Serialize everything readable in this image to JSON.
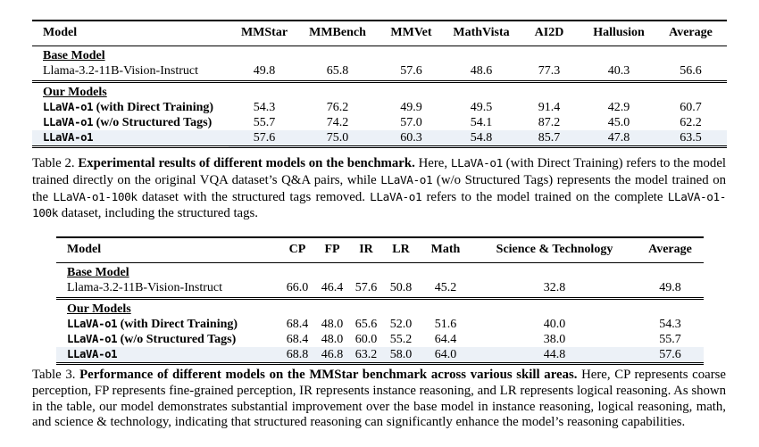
{
  "page": {
    "background_color": "#ffffff",
    "text_color": "#000000",
    "highlight_row_color": "#ecf1f7"
  },
  "chart_data": [
    {
      "type": "table",
      "title": "Experimental results of different models on the benchmark",
      "columns": [
        "Model",
        "MMStar",
        "MMBench",
        "MMVet",
        "MathVista",
        "AI2D",
        "Hallusion",
        "Average"
      ],
      "sections": [
        {
          "heading": "Base Model",
          "rows": [
            {
              "model": [
                {
                  "t": "Llama-3.2-11B-Vision-Instruct",
                  "s": "r"
                }
              ],
              "values": [
                "49.8",
                "65.8",
                "57.6",
                "48.6",
                "77.3",
                "40.3",
                "56.6"
              ],
              "highlight": false
            }
          ]
        },
        {
          "heading": "Our Models",
          "rows": [
            {
              "model": [
                {
                  "t": "LLaVA-o1",
                  "s": "mb"
                },
                {
                  "t": " (with Direct Training)",
                  "s": "b"
                }
              ],
              "values": [
                "54.3",
                "76.2",
                "49.9",
                "49.5",
                "91.4",
                "42.9",
                "60.7"
              ],
              "highlight": false
            },
            {
              "model": [
                {
                  "t": "LLaVA-o1",
                  "s": "mb"
                },
                {
                  "t": " (w/o Structured Tags)",
                  "s": "b"
                }
              ],
              "values": [
                "55.7",
                "74.2",
                "57.0",
                "54.1",
                "87.2",
                "45.0",
                "62.2"
              ],
              "highlight": false
            },
            {
              "model": [
                {
                  "t": "LLaVA-o1",
                  "s": "mb"
                }
              ],
              "values": [
                "57.6",
                "75.0",
                "60.3",
                "54.8",
                "85.7",
                "47.8",
                "63.5"
              ],
              "highlight": true
            }
          ]
        }
      ]
    },
    {
      "type": "table",
      "title": "Performance of different models on the MMStar benchmark across various skill areas",
      "columns": [
        "Model",
        "CP",
        "FP",
        "IR",
        "LR",
        "Math",
        "Science & Technology",
        "Average"
      ],
      "sections": [
        {
          "heading": "Base Model",
          "rows": [
            {
              "model": [
                {
                  "t": "Llama-3.2-11B-Vision-Instruct",
                  "s": "r"
                }
              ],
              "values": [
                "66.0",
                "46.4",
                "57.6",
                "50.8",
                "45.2",
                "32.8",
                "49.8"
              ],
              "highlight": false
            }
          ]
        },
        {
          "heading": "Our Models",
          "rows": [
            {
              "model": [
                {
                  "t": "LLaVA-o1",
                  "s": "mb"
                },
                {
                  "t": " (with Direct Training)",
                  "s": "b"
                }
              ],
              "values": [
                "68.4",
                "48.0",
                "65.6",
                "52.0",
                "51.6",
                "40.0",
                "54.3"
              ],
              "highlight": false
            },
            {
              "model": [
                {
                  "t": "LLaVA-o1",
                  "s": "mb"
                },
                {
                  "t": " (w/o Structured Tags)",
                  "s": "b"
                }
              ],
              "values": [
                "68.4",
                "48.0",
                "60.0",
                "55.2",
                "64.4",
                "38.0",
                "55.7"
              ],
              "highlight": false
            },
            {
              "model": [
                {
                  "t": "LLaVA-o1",
                  "s": "mb"
                }
              ],
              "values": [
                "68.8",
                "46.8",
                "63.2",
                "58.0",
                "64.0",
                "44.8",
                "57.6"
              ],
              "highlight": true
            }
          ]
        }
      ]
    }
  ],
  "caption2": {
    "segments": [
      {
        "t": "Table 2.  ",
        "s": "r"
      },
      {
        "t": "Experimental results of different models on the benchmark.",
        "s": "b"
      },
      {
        "t": "  Here, ",
        "s": "r"
      },
      {
        "t": "LLaVA-o1",
        "s": "m"
      },
      {
        "t": " (with Direct Training) refers to the model trained directly on the original VQA dataset’s Q&A pairs, while ",
        "s": "r"
      },
      {
        "t": "LLaVA-o1",
        "s": "m"
      },
      {
        "t": " (w/o Structured Tags) represents the model trained on the ",
        "s": "r"
      },
      {
        "t": "LLaVA-o1-100k",
        "s": "m"
      },
      {
        "t": " dataset with the structured tags removed. ",
        "s": "r"
      },
      {
        "t": "LLaVA-o1",
        "s": "m"
      },
      {
        "t": " refers to the model trained on the complete ",
        "s": "r"
      },
      {
        "t": "LLaVA-o1-100k",
        "s": "m"
      },
      {
        "t": " dataset, including the structured tags.",
        "s": "r"
      }
    ]
  },
  "caption3": {
    "segments": [
      {
        "t": "Table 3.  ",
        "s": "r"
      },
      {
        "t": "Performance of different models on the MMStar benchmark across various skill areas.",
        "s": "b"
      },
      {
        "t": "  Here, CP represents coarse perception, FP represents fine-grained perception, IR represents instance reasoning, and LR represents logical reasoning.  As shown in the table, our model demonstrates substantial improvement over the base model in instance reasoning, logical reasoning, math, and science & technology, indicating that structured reasoning can significantly enhance the model’s reasoning capabilities.",
        "s": "r"
      }
    ]
  }
}
